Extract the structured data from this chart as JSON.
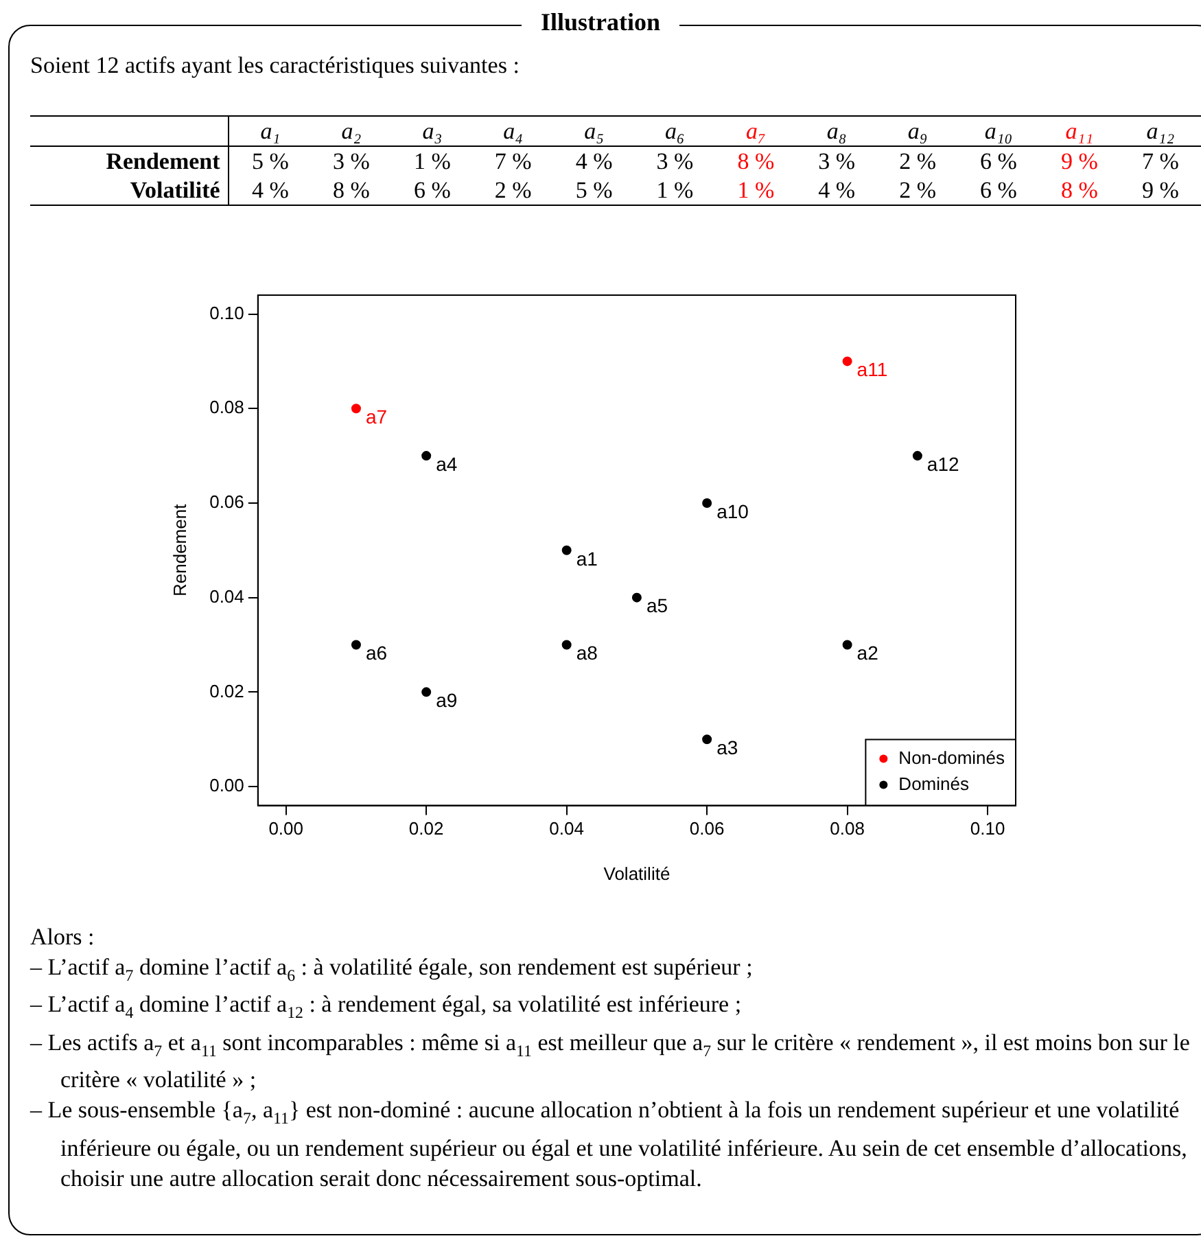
{
  "chart_data": [
    {
      "type": "other",
      "title": "Illustration",
      "subtitle": "Soient 12 actifs ayant les caractéristiques suivantes :",
      "categories": [
        "a₁",
        "a₂",
        "a₃",
        "a₄",
        "a₅",
        "a₆",
        "a₇",
        "a₈",
        "a₉",
        "a₁₀",
        "a₁₁",
        "a₁₂"
      ],
      "series": [
        {
          "name": "Rendement",
          "values": [
            5,
            3,
            1,
            7,
            4,
            3,
            8,
            3,
            2,
            6,
            9,
            7
          ],
          "value_labels": [
            "5 %",
            "3 %",
            "1 %",
            "7 %",
            "4 %",
            "3 %",
            "8 %",
            "3 %",
            "2 %",
            "6 %",
            "9 %",
            "7 %"
          ],
          "colors": [
            "#000000",
            "#000000",
            "#000000",
            "#000000",
            "#000000",
            "#000000",
            "#ff0000",
            "#000000",
            "#000000",
            "#000000",
            "#ff0000",
            "#000000"
          ]
        },
        {
          "name": "Volatilité",
          "values": [
            4,
            8,
            6,
            2,
            5,
            1,
            1,
            4,
            2,
            6,
            8,
            9
          ],
          "value_labels": [
            "4 %",
            "8 %",
            "6 %",
            "2 %",
            "5 %",
            "1 %",
            "1 %",
            "4 %",
            "2 %",
            "6 %",
            "8 %",
            "9 %"
          ],
          "colors": [
            "#000000",
            "#000000",
            "#000000",
            "#000000",
            "#000000",
            "#000000",
            "#ff0000",
            "#000000",
            "#000000",
            "#000000",
            "#ff0000",
            "#000000"
          ]
        }
      ]
    },
    {
      "type": "scatter",
      "xlabel": "Volatilité",
      "ylabel": "Rendement",
      "xlim": [
        -0.004,
        0.104
      ],
      "ylim": [
        -0.004,
        0.104
      ],
      "xticks": [
        {
          "value": 0,
          "label": "0.00"
        },
        0.02,
        0.04,
        0.06,
        0.08,
        {
          "value": 0.1,
          "label": "0.10"
        }
      ],
      "yticks": [
        {
          "value": 0,
          "label": "0.00"
        },
        0.02,
        0.04,
        0.06,
        0.08,
        {
          "value": 0.1,
          "label": "0.10"
        }
      ],
      "grid": false,
      "legend": "bottom right",
      "marker": "circle",
      "series": [
        {
          "name": "Non-dominés",
          "color": "#ff0000",
          "x": [
            0.01,
            0.08
          ],
          "values": [
            0.08,
            0.09
          ]
        },
        {
          "name": "Dominés",
          "color": "#000000",
          "x": [
            0.04,
            0.08,
            0.06,
            0.02,
            0.05,
            0.01,
            0.04,
            0.02,
            0.06,
            0.09
          ],
          "values": [
            0.05,
            0.03,
            0.01,
            0.07,
            0.04,
            0.03,
            0.03,
            0.02,
            0.06,
            0.07
          ]
        }
      ],
      "annotations": [
        {
          "text": "a1",
          "x": 0.04,
          "y": 0.05
        },
        {
          "text": "a2",
          "x": 0.08,
          "y": 0.03
        },
        {
          "text": "a3",
          "x": 0.06,
          "y": 0.01
        },
        {
          "text": "a4",
          "x": 0.02,
          "y": 0.07
        },
        {
          "text": "a5",
          "x": 0.05,
          "y": 0.04
        },
        {
          "text": "a6",
          "x": 0.01,
          "y": 0.03
        },
        {
          "text": "a7",
          "x": 0.01,
          "y": 0.08
        },
        {
          "text": "a8",
          "x": 0.04,
          "y": 0.03
        },
        {
          "text": "a9",
          "x": 0.02,
          "y": 0.02
        },
        {
          "text": "a10",
          "x": 0.06,
          "y": 0.06
        },
        {
          "text": "a11",
          "x": 0.08,
          "y": 0.09
        },
        {
          "text": "a12",
          "x": 0.09,
          "y": 0.07
        }
      ]
    },
    {
      "type": "other",
      "annotations": [
        "Alors :",
        "– L’actif a$_{7}$ domine l’actif a$_{6}$ : à volatilité égale, son rendement est supérieur ;",
        "– L’actif a$_{4}$ domine l’actif a$_{12}$ : à rendement égal, sa volatilité est inférieure ;",
        "– Les actifs a$_{7}$ et a$_{11}$ sont incomparables : même si a$_{11}$ est meilleur que a$_{7}$ sur le critère « rendement », il est moins bon sur le critère « volatilité » ;",
        "– Le sous-ensemble {a$_{7}$, a$_{11}$} est non-dominé : aucune allocation n’obtient à la fois un rendement supérieur et une volatilité inférieure ou égale, ou un rendement supérieur ou égal et une volatilité inférieure. Au sein de cet ensemble d’allocations, choisir une autre allocation serait donc nécessairement sous-optimal."
      ]
    }
  ]
}
